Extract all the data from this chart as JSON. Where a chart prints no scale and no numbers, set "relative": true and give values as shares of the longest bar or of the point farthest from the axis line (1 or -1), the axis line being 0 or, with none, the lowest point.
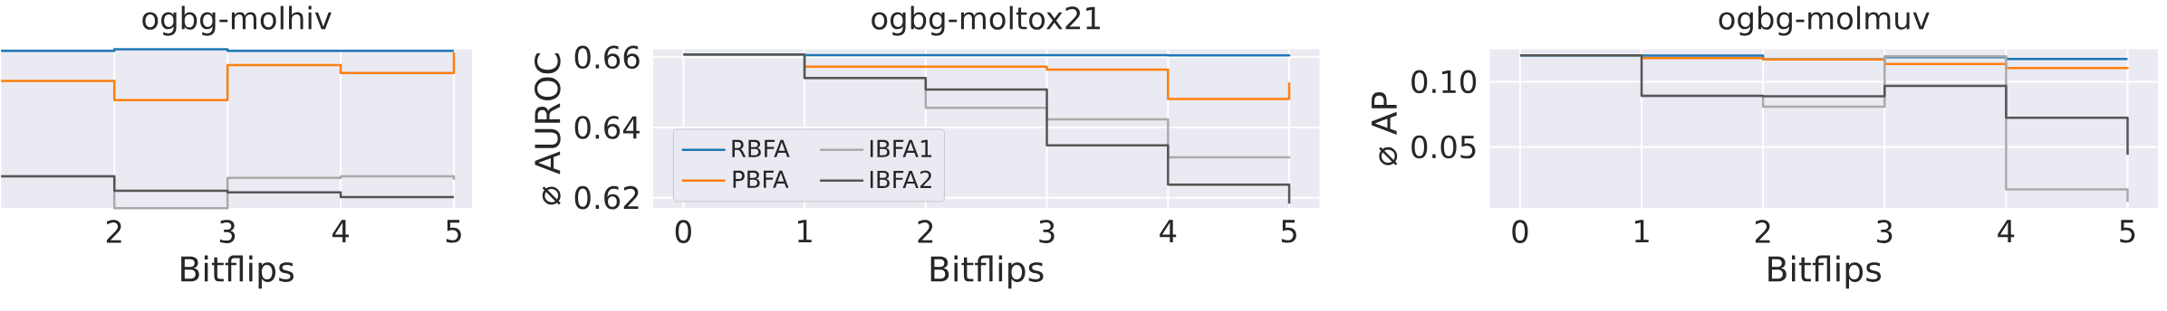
{
  "chart_data": [
    {
      "type": "step",
      "title": "ogbg-molhiv",
      "xlabel": "Bitflips",
      "relative": true,
      "grid": "x",
      "x": [
        1,
        2,
        3,
        4,
        5
      ],
      "xlim": [
        1,
        5.16
      ],
      "xticks": [
        2,
        3,
        4,
        5
      ],
      "series": [
        {
          "color": "#1f77b4",
          "values": [
            0.99,
            1.0,
            0.99,
            0.99,
            0.99
          ]
        },
        {
          "color": "#ff7f0e",
          "values": [
            0.8,
            0.68,
            0.9,
            0.85,
            0.98
          ]
        },
        {
          "color": "#aaaaaa",
          "values": [
            0.2,
            0.0,
            0.19,
            0.2,
            0.18
          ]
        },
        {
          "color": "#555555",
          "values": [
            0.2,
            0.11,
            0.1,
            0.07,
            0.07
          ]
        }
      ]
    },
    {
      "type": "step",
      "title": "ogbg-moltox21",
      "xlabel": "Bitflips",
      "ylabel": "⌀ AUROC",
      "grid": true,
      "legend": "bottom left",
      "x": [
        0,
        1,
        2,
        3,
        4,
        5
      ],
      "xlim": [
        -0.25,
        5.25
      ],
      "xticks": [
        0,
        1,
        2,
        3,
        4,
        5
      ],
      "ylim": [
        0.617,
        0.6623
      ],
      "yticks": [
        0.62,
        0.64,
        0.66
      ],
      "series": [
        {
          "name": "RBFA",
          "color": "#1f77b4",
          "values": [
            0.6608,
            0.6606,
            0.6606,
            0.6606,
            0.6605,
            0.6603
          ]
        },
        {
          "name": "PBFA",
          "color": "#ff7f0e",
          "values": [
            null,
            0.6573,
            0.6573,
            0.6565,
            0.6481,
            0.6528
          ]
        },
        {
          "name": "IBFA1",
          "color": "#aaaaaa",
          "values": [
            0.6608,
            0.6541,
            0.6456,
            0.6423,
            0.6315,
            0.6312
          ]
        },
        {
          "name": "IBFA2",
          "color": "#555555",
          "values": [
            0.6608,
            0.6541,
            0.6508,
            0.6349,
            0.6237,
            0.6183
          ]
        }
      ]
    },
    {
      "type": "step",
      "title": "ogbg-molmuv",
      "xlabel": "Bitflips",
      "ylabel": "⌀ AP",
      "grid": true,
      "x": [
        0,
        1,
        2,
        3,
        4,
        5
      ],
      "xlim": [
        -0.25,
        5.25
      ],
      "xticks": [
        0,
        1,
        2,
        3,
        4,
        5
      ],
      "ylim": [
        0.003,
        0.125
      ],
      "yticks": [
        {
          "value": 0.05,
          "label": "0.05"
        },
        {
          "value": 0.1,
          "label": "0.10"
        }
      ],
      "series": [
        {
          "color": "#1f77b4",
          "values": [
            0.1203,
            0.12,
            0.1171,
            0.1189,
            0.1175,
            0.1175
          ]
        },
        {
          "color": "#ff7f0e",
          "values": [
            null,
            0.1182,
            0.1171,
            0.1136,
            0.1105,
            0.11
          ]
        },
        {
          "color": "#aaaaaa",
          "values": [
            null,
            0.0892,
            0.0808,
            0.1196,
            0.0174,
            0.0079
          ]
        },
        {
          "color": "#555555",
          "values": [
            0.1203,
            0.0892,
            0.0888,
            0.0969,
            0.0724,
            0.044
          ]
        }
      ]
    }
  ]
}
